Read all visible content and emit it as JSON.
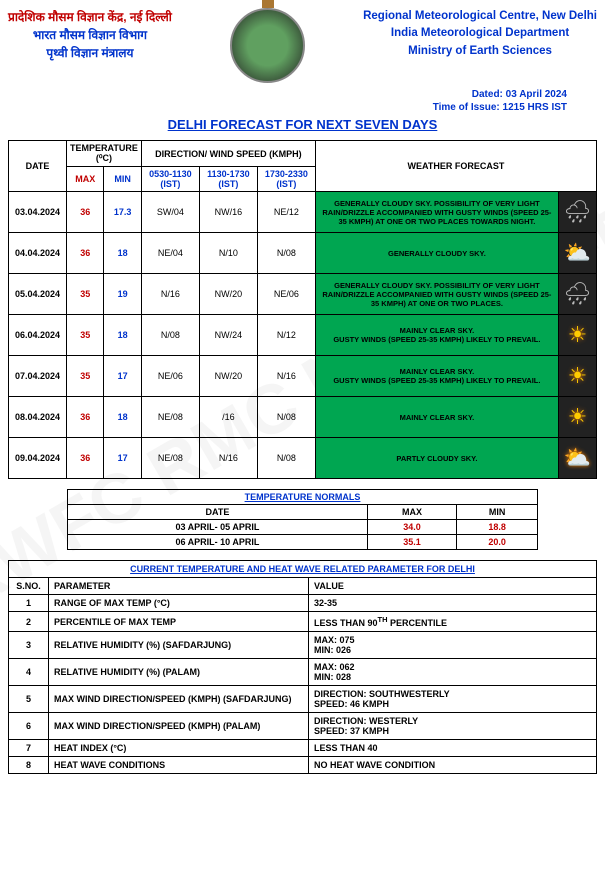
{
  "header": {
    "hindi_line1": "प्रादेशिक मौसम विज्ञान केंद्र, नई दिल्ली",
    "hindi_line2": "भारत मौसम विज्ञान विभाग",
    "hindi_line3": "पृथ्वी विज्ञान मंत्रालय",
    "eng_line1": "Regional Meteorological Centre, New Delhi",
    "eng_line2": "India Meteorological Department",
    "eng_line3": "Ministry of Earth Sciences",
    "dated": "Dated: 03 April 2024",
    "time_issue": "Time of Issue: 1215 HRS IST",
    "main_title": "DELHI FORECAST FOR NEXT SEVEN DAYS"
  },
  "forecast": {
    "headers": {
      "date": "DATE",
      "temp": "TEMPERATURE (⁰C)",
      "max": "MAX",
      "min": "MIN",
      "wind": "DIRECTION/ WIND SPEED (KMPH)",
      "t1": "0530-1130 (IST)",
      "t2": "1130-1730 (IST)",
      "t3": "1730-2330 (IST)",
      "fc": "WEATHER FORECAST"
    },
    "rows": [
      {
        "date": "03.04.2024",
        "max": "36",
        "min": "17.3",
        "w1": "SW/04",
        "w2": "NW/16",
        "w3": "NE/12",
        "fc": "GENERALLY CLOUDY SKY. POSSIBILITY OF VERY LIGHT RAIN/DRIZZLE ACCOMPANIED WITH GUSTY WINDS (SPEED 25-35 KMPH) AT ONE OR TWO PLACES TOWARDS NIGHT.",
        "icon": "🌧",
        "icls": "rain"
      },
      {
        "date": "04.04.2024",
        "max": "36",
        "min": "18",
        "w1": "NE/04",
        "w2": "N/10",
        "w3": "N/08",
        "fc": "GENERALLY CLOUDY SKY.",
        "icon": "⛅",
        "icls": "cloud"
      },
      {
        "date": "05.04.2024",
        "max": "35",
        "min": "19",
        "w1": "N/16",
        "w2": "NW/20",
        "w3": "NE/06",
        "fc": "GENERALLY CLOUDY SKY. POSSIBILITY OF VERY LIGHT RAIN/DRIZZLE ACCOMPANIED WITH GUSTY WINDS (SPEED 25-35 KMPH) AT ONE OR TWO PLACES.",
        "icon": "🌧",
        "icls": "rain"
      },
      {
        "date": "06.04.2024",
        "max": "35",
        "min": "18",
        "w1": "N/08",
        "w2": "NW/24",
        "w3": "N/12",
        "fc": "MAINLY CLEAR SKY.\nGUSTY WINDS (SPEED 25-35 KMPH) LIKELY TO PREVAIL.",
        "icon": "☀",
        "icls": "sun"
      },
      {
        "date": "07.04.2024",
        "max": "35",
        "min": "17",
        "w1": "NE/06",
        "w2": "NW/20",
        "w3": "N/16",
        "fc": "MAINLY CLEAR SKY.\nGUSTY WINDS (SPEED 25-35 KMPH) LIKELY TO PREVAIL.",
        "icon": "☀",
        "icls": "sun"
      },
      {
        "date": "08.04.2024",
        "max": "36",
        "min": "18",
        "w1": "NE/08",
        "w2": "/16",
        "w3": "N/08",
        "fc": "MAINLY CLEAR SKY.",
        "icon": "☀",
        "icls": "sun"
      },
      {
        "date": "09.04.2024",
        "max": "36",
        "min": "17",
        "w1": "NE/08",
        "w2": "N/16",
        "w3": "N/08",
        "fc": "PARTLY CLOUDY SKY.",
        "icon": "⛅",
        "icls": "sun"
      }
    ]
  },
  "normals": {
    "title": "TEMPERATURE NORMALS",
    "h_date": "DATE",
    "h_max": "MAX",
    "h_min": "MIN",
    "rows": [
      {
        "date": "03 APRIL- 05 APRIL",
        "max": "34.0",
        "min": "18.8"
      },
      {
        "date": "06 APRIL- 10 APRIL",
        "max": "35.1",
        "min": "20.0"
      }
    ]
  },
  "params": {
    "title": "CURRENT TEMPERATURE AND HEAT WAVE RELATED PARAMETER FOR DELHI",
    "h_sno": "S.NO.",
    "h_param": "PARAMETER",
    "h_value": "VALUE",
    "rows": [
      {
        "n": "1",
        "p": "RANGE OF MAX TEMP (°C)",
        "v": "32-35"
      },
      {
        "n": "2",
        "p": "PERCENTILE OF MAX TEMP",
        "v": "LESS THAN 90<sup>TH</sup> PERCENTILE"
      },
      {
        "n": "3",
        "p": "RELATIVE HUMIDITY (%) (SAFDARJUNG)",
        "v": "MAX: 075<br>MIN:  026"
      },
      {
        "n": "4",
        "p": "RELATIVE HUMIDITY (%) (PALAM)",
        "v": "MAX: 062<br>MIN:  028"
      },
      {
        "n": "5",
        "p": "MAX WIND DIRECTION/SPEED (KMPH) (SAFDARJUNG)",
        "v": "DIRECTION: SOUTHWESTERLY<br>SPEED:  46 KMPH"
      },
      {
        "n": "6",
        "p": "MAX WIND DIRECTION/SPEED (KMPH) (PALAM)",
        "v": "DIRECTION: WESTERLY<br>SPEED: 37 KMPH"
      },
      {
        "n": "7",
        "p": "HEAT INDEX (°C)",
        "v": "LESS THAN 40"
      },
      {
        "n": "8",
        "p": "HEAT WAVE CONDITIONS",
        "v": "NO HEAT WAVE CONDITION"
      }
    ]
  }
}
